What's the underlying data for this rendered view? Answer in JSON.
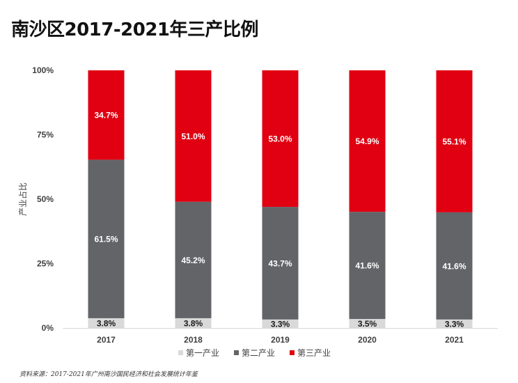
{
  "title": "南沙区2017-2021年三产比例",
  "source_note": "资料来源：2017-2021年广州南沙国民经济和社会发展统计年鉴",
  "chart_data": {
    "type": "bar",
    "stacked": true,
    "percent": true,
    "categories": [
      "2017",
      "2018",
      "2019",
      "2020",
      "2021"
    ],
    "series": [
      {
        "name": "第一产业",
        "values": [
          3.8,
          3.8,
          3.3,
          3.5,
          3.3
        ],
        "labels": [
          "3.8%",
          "3.8%",
          "3.3%",
          "3.5%",
          "3.3%"
        ],
        "color": "#d9d9d9"
      },
      {
        "name": "第二产业",
        "values": [
          61.5,
          45.2,
          43.7,
          41.6,
          41.6
        ],
        "labels": [
          "61.5%",
          "45.2%",
          "43.7%",
          "41.6%",
          "41.6%"
        ],
        "color": "#636468"
      },
      {
        "name": "第三产业",
        "values": [
          34.7,
          51.0,
          53.0,
          54.9,
          55.1
        ],
        "labels": [
          "34.7%",
          "51.0%",
          "53.0%",
          "54.9%",
          "55.1%"
        ],
        "color": "#e00012"
      }
    ],
    "ylabel": "产业占比",
    "xlabel": "",
    "ylim": [
      0,
      100
    ],
    "yticks": [
      0,
      25,
      50,
      75,
      100
    ],
    "ytick_labels": [
      "0%",
      "25%",
      "50%",
      "75%",
      "100%"
    ],
    "grid": false,
    "legend_position": "bottom"
  }
}
